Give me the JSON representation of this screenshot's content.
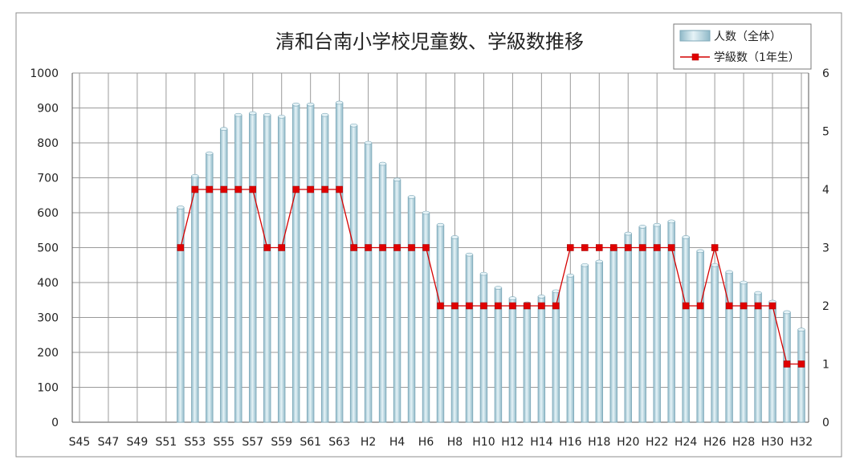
{
  "chart_data": {
    "type": "bar",
    "title": "清和台南小学校児童数、学級数推移",
    "x_tick_labels": [
      "S45",
      "S47",
      "S49",
      "S51",
      "S53",
      "S55",
      "S57",
      "S59",
      "S61",
      "S63",
      "H2",
      "H4",
      "H6",
      "H8",
      "H10",
      "H12",
      "H14",
      "H16",
      "H18",
      "H20",
      "H22",
      "H24",
      "H26",
      "H28",
      "H30",
      "H32"
    ],
    "categories": [
      "S45",
      "S46",
      "S47",
      "S48",
      "S49",
      "S50",
      "S51",
      "S52",
      "S53",
      "S54",
      "S55",
      "S56",
      "S57",
      "S58",
      "S59",
      "S60",
      "S61",
      "S62",
      "S63",
      "H1",
      "H2",
      "H3",
      "H4",
      "H5",
      "H6",
      "H7",
      "H8",
      "H9",
      "H10",
      "H11",
      "H12",
      "H13",
      "H14",
      "H15",
      "H16",
      "H17",
      "H18",
      "H19",
      "H20",
      "H21",
      "H22",
      "H23",
      "H24",
      "H25",
      "H26",
      "H27",
      "H28",
      "H29",
      "H30",
      "H31",
      "H32"
    ],
    "series": [
      {
        "name": "人数（全体）",
        "kind": "bar",
        "axis": "left",
        "values": [
          null,
          null,
          null,
          null,
          null,
          null,
          null,
          615,
          705,
          770,
          840,
          880,
          885,
          880,
          875,
          910,
          910,
          880,
          915,
          850,
          800,
          740,
          695,
          645,
          600,
          565,
          530,
          480,
          425,
          385,
          355,
          340,
          360,
          375,
          420,
          450,
          460,
          500,
          540,
          560,
          565,
          575,
          530,
          490,
          450,
          430,
          400,
          370,
          345,
          315,
          265
        ]
      },
      {
        "name": "学級数（1年生）",
        "kind": "line",
        "axis": "right",
        "values": [
          null,
          null,
          null,
          null,
          null,
          null,
          null,
          3,
          4,
          4,
          4,
          4,
          4,
          3,
          3,
          4,
          4,
          4,
          4,
          3,
          3,
          3,
          3,
          3,
          3,
          2,
          2,
          2,
          2,
          2,
          2,
          2,
          2,
          2,
          3,
          3,
          3,
          3,
          3,
          3,
          3,
          3,
          2,
          2,
          3,
          2,
          2,
          2,
          2,
          1,
          1
        ]
      }
    ],
    "y_left": {
      "min": 0,
      "max": 1000,
      "step": 100,
      "ticks": [
        "0",
        "100",
        "200",
        "300",
        "400",
        "500",
        "600",
        "700",
        "800",
        "900",
        "1000"
      ]
    },
    "y_right": {
      "min": 0,
      "max": 6,
      "step": 1,
      "ticks": [
        "0",
        "1",
        "2",
        "3",
        "4",
        "5",
        "6"
      ]
    },
    "legend": {
      "position": "top-right",
      "items": [
        "人数（全体）",
        "学級数（1年生）"
      ]
    },
    "grid": true,
    "colors": {
      "bar_fill_light": "#e6f3f7",
      "bar_fill_dark": "#8fb9c8",
      "bar_stroke": "#7fa9b9",
      "line": "#d40000",
      "marker": "#e00000",
      "grid": "#9a9a9a",
      "frame": "#8c8c8c"
    }
  }
}
